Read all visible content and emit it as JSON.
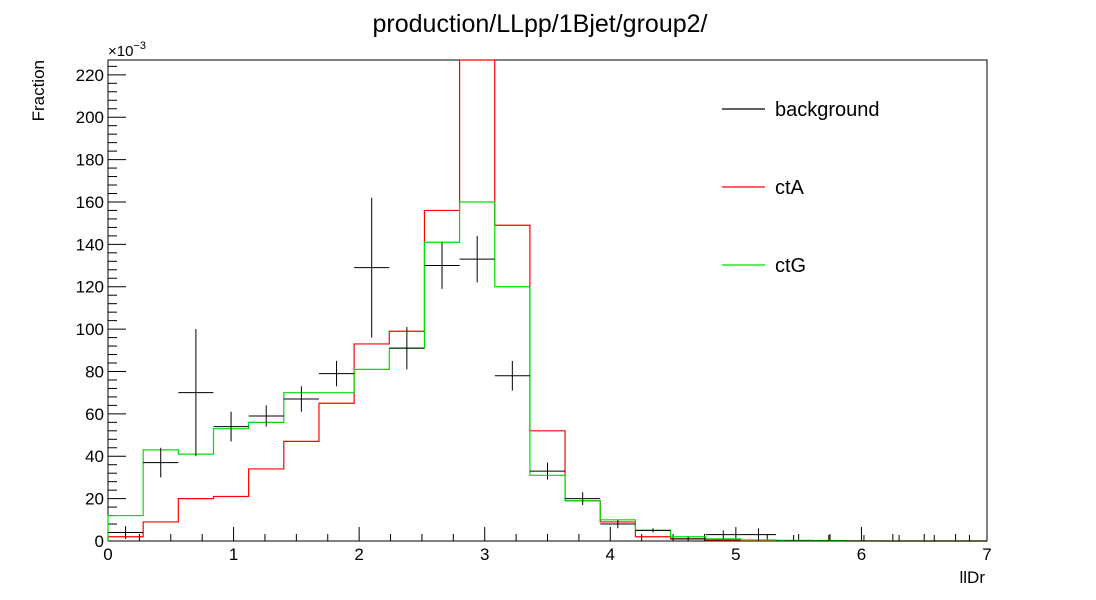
{
  "chart_data": {
    "type": "histogram",
    "title": "production/LLpp/1Bjet/group2/",
    "xlabel": "llDr",
    "ylabel": "Fraction",
    "y_exponent_label": "×10",
    "y_exponent_power": "−3",
    "xlim": [
      0,
      7
    ],
    "ylim": [
      0,
      227
    ],
    "x_ticks": [
      "0",
      "1",
      "2",
      "3",
      "4",
      "5",
      "6",
      "7"
    ],
    "y_ticks": [
      "0",
      "20",
      "40",
      "60",
      "80",
      "100",
      "120",
      "140",
      "160",
      "180",
      "200",
      "220"
    ],
    "bin_edges": [
      0,
      0.28,
      0.56,
      0.84,
      1.12,
      1.4,
      1.68,
      1.96,
      2.24,
      2.52,
      2.8,
      3.08,
      3.36,
      3.64,
      3.92,
      4.2,
      4.48,
      4.76,
      5.04,
      5.32,
      5.6,
      5.88,
      6.16,
      6.44,
      6.72,
      7.0
    ],
    "legend_position": "top-right",
    "series": [
      {
        "name": "background",
        "style": "points-with-errors",
        "color": "#000000",
        "values": [
          4,
          37,
          70,
          54,
          59,
          67,
          79,
          129,
          91,
          130,
          133,
          78,
          33,
          20,
          8,
          5,
          1,
          3,
          3,
          0,
          0,
          0,
          0,
          0,
          0
        ],
        "errors": [
          3,
          7,
          30,
          7,
          5,
          6,
          6,
          33,
          10,
          11,
          11,
          7,
          4,
          3,
          2,
          1,
          1,
          2,
          3,
          0,
          0,
          0,
          0,
          0,
          0
        ]
      },
      {
        "name": "ctA",
        "style": "step",
        "color": "#ff0000",
        "values": [
          2,
          9,
          20,
          21,
          34,
          47,
          65,
          93,
          99,
          156,
          227,
          149,
          52,
          19,
          9,
          2,
          1,
          0.5,
          0.3,
          0.2,
          0.1,
          0,
          0,
          0,
          0
        ]
      },
      {
        "name": "ctG",
        "style": "step",
        "color": "#00dd00",
        "values": [
          12,
          43,
          41,
          53,
          56,
          70,
          70,
          81,
          91,
          141,
          160,
          120,
          31,
          19,
          10,
          5,
          2,
          1,
          0.5,
          0.3,
          0.2,
          0.1,
          0,
          0,
          0
        ]
      }
    ]
  }
}
